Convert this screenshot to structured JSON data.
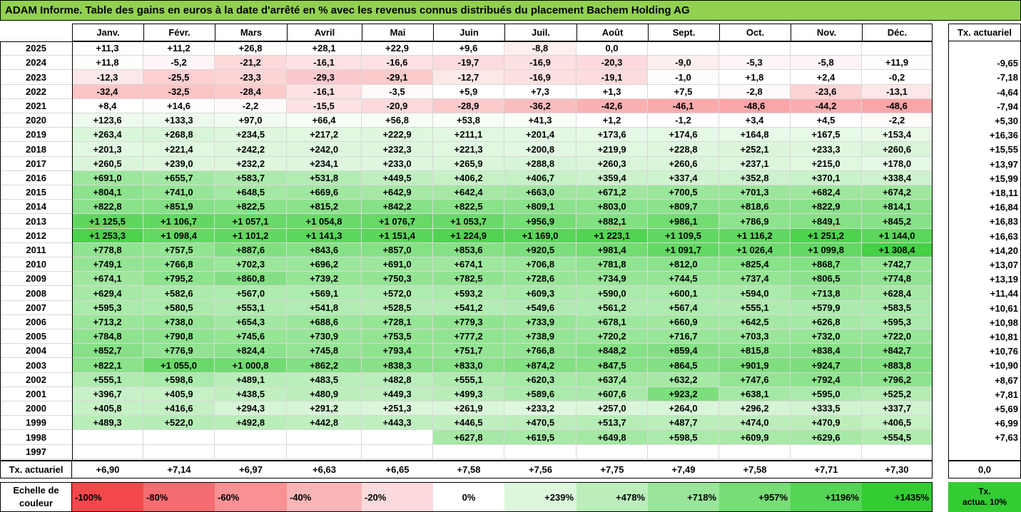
{
  "title": "ADAM Informe. Table des gains en euros à la date d'arrêté en % avec les revenus connus distribués du placement Bachem Holding AG",
  "months": [
    "Janv.",
    "Févr.",
    "Mars",
    "Avril",
    "Mai",
    "Juin",
    "Juil.",
    "Août",
    "Sept.",
    "Oct.",
    "Nov.",
    "Déc."
  ],
  "tx_header": "Tx. actuariel",
  "tx_footer_label": "Tx. actuariel",
  "colors": {
    "neg_max": "#f2484c",
    "pos_max": "#33cc33",
    "neutral": "#ffffff",
    "title_bg": "#92d050"
  },
  "chart_data": {
    "type": "heatmap",
    "title": "ADAM Informe. Table des gains en euros à la date d'arrêté en % avec les revenus connus distribués du placement Bachem Holding AG",
    "x_categories": [
      "Janv.",
      "Févr.",
      "Mars",
      "Avril",
      "Mai",
      "Juin",
      "Juil.",
      "Août",
      "Sept.",
      "Oct.",
      "Nov.",
      "Déc."
    ],
    "scale": {
      "min": -100,
      "max": 1435
    },
    "rows": [
      {
        "year": "2025",
        "values": [
          "+11,3",
          "+11,2",
          "+26,8",
          "+28,1",
          "+22,9",
          "+9,6",
          "-8,8",
          "0,0",
          "",
          "",
          "",
          ""
        ],
        "tx": ""
      },
      {
        "year": "2024",
        "values": [
          "+11,8",
          "-5,2",
          "-21,2",
          "-16,1",
          "-16,6",
          "-19,7",
          "-16,9",
          "-20,3",
          "-9,0",
          "-5,3",
          "-5,8",
          "+11,9"
        ],
        "tx": "-9,65"
      },
      {
        "year": "2023",
        "values": [
          "-12,3",
          "-25,5",
          "-23,3",
          "-29,3",
          "-29,1",
          "-12,7",
          "-16,9",
          "-19,1",
          "-1,0",
          "+1,8",
          "+2,4",
          "-0,2"
        ],
        "tx": "-7,18"
      },
      {
        "year": "2022",
        "values": [
          "-32,4",
          "-32,5",
          "-28,4",
          "-16,1",
          "-3,5",
          "+5,9",
          "+7,3",
          "+1,3",
          "+7,5",
          "-2,8",
          "-23,6",
          "-13,1"
        ],
        "tx": "-4,64"
      },
      {
        "year": "2021",
        "values": [
          "+8,4",
          "+14,6",
          "-2,2",
          "-15,5",
          "-20,9",
          "-28,9",
          "-36,2",
          "-42,6",
          "-46,1",
          "-48,6",
          "-44,2",
          "-48,6"
        ],
        "tx": "-7,94"
      },
      {
        "year": "2020",
        "values": [
          "+123,6",
          "+133,3",
          "+97,0",
          "+66,4",
          "+56,8",
          "+53,8",
          "+41,3",
          "+1,2",
          "-1,2",
          "+3,4",
          "+4,5",
          "-2,2"
        ],
        "tx": "+5,30"
      },
      {
        "year": "2019",
        "values": [
          "+263,4",
          "+268,8",
          "+234,5",
          "+217,2",
          "+222,9",
          "+211,1",
          "+201,4",
          "+173,6",
          "+174,6",
          "+164,8",
          "+167,5",
          "+153,4"
        ],
        "tx": "+16,36"
      },
      {
        "year": "2018",
        "values": [
          "+201,3",
          "+221,4",
          "+242,2",
          "+242,0",
          "+232,3",
          "+221,3",
          "+200,8",
          "+219,9",
          "+228,8",
          "+252,1",
          "+233,3",
          "+260,6"
        ],
        "tx": "+15,55"
      },
      {
        "year": "2017",
        "values": [
          "+260,5",
          "+239,0",
          "+232,2",
          "+234,1",
          "+233,0",
          "+265,9",
          "+288,8",
          "+260,3",
          "+260,6",
          "+237,1",
          "+215,0",
          "+178,0"
        ],
        "tx": "+13,97"
      },
      {
        "year": "2016",
        "values": [
          "+691,0",
          "+655,7",
          "+583,7",
          "+531,8",
          "+449,5",
          "+406,2",
          "+406,7",
          "+359,4",
          "+337,4",
          "+352,8",
          "+370,1",
          "+338,4"
        ],
        "tx": "+15,99"
      },
      {
        "year": "2015",
        "values": [
          "+804,1",
          "+741,0",
          "+648,5",
          "+669,6",
          "+642,9",
          "+642,4",
          "+663,0",
          "+671,2",
          "+700,5",
          "+701,3",
          "+682,4",
          "+674,2"
        ],
        "tx": "+18,11"
      },
      {
        "year": "2014",
        "values": [
          "+822,8",
          "+851,9",
          "+822,5",
          "+815,2",
          "+842,2",
          "+822,5",
          "+809,1",
          "+803,0",
          "+809,7",
          "+818,6",
          "+822,9",
          "+814,1"
        ],
        "tx": "+16,84"
      },
      {
        "year": "2013",
        "values": [
          "+1 125,5",
          "+1 106,7",
          "+1 057,1",
          "+1 054,8",
          "+1 076,7",
          "+1 053,7",
          "+956,9",
          "+882,1",
          "+986,1",
          "+786,9",
          "+849,1",
          "+845,2"
        ],
        "tx": "+16,83"
      },
      {
        "year": "2012",
        "values": [
          "+1 253,3",
          "+1 098,4",
          "+1 101,2",
          "+1 141,3",
          "+1 151,4",
          "+1 224,9",
          "+1 169,0",
          "+1 223,1",
          "+1 109,5",
          "+1 116,2",
          "+1 251,2",
          "+1 144,0"
        ],
        "tx": "+16,63"
      },
      {
        "year": "2011",
        "values": [
          "+778,8",
          "+757,5",
          "+887,6",
          "+843,6",
          "+857,0",
          "+853,6",
          "+920,5",
          "+981,4",
          "+1 091,7",
          "+1 026,4",
          "+1 099,8",
          "+1 308,4"
        ],
        "tx": "+14,20"
      },
      {
        "year": "2010",
        "values": [
          "+749,1",
          "+766,8",
          "+702,3",
          "+696,2",
          "+691,0",
          "+674,1",
          "+706,8",
          "+781,8",
          "+812,0",
          "+825,4",
          "+868,7",
          "+742,7"
        ],
        "tx": "+13,07"
      },
      {
        "year": "2009",
        "values": [
          "+674,1",
          "+795,2",
          "+860,8",
          "+739,2",
          "+750,3",
          "+782,5",
          "+728,6",
          "+734,9",
          "+744,5",
          "+737,4",
          "+806,5",
          "+774,8"
        ],
        "tx": "+13,19"
      },
      {
        "year": "2008",
        "values": [
          "+629,4",
          "+582,6",
          "+567,0",
          "+569,1",
          "+572,0",
          "+593,2",
          "+609,3",
          "+590,0",
          "+600,1",
          "+594,0",
          "+713,8",
          "+628,4"
        ],
        "tx": "+11,44"
      },
      {
        "year": "2007",
        "values": [
          "+595,3",
          "+580,5",
          "+553,1",
          "+541,8",
          "+528,5",
          "+541,2",
          "+549,6",
          "+561,2",
          "+567,4",
          "+555,1",
          "+579,9",
          "+583,5"
        ],
        "tx": "+10,61"
      },
      {
        "year": "2006",
        "values": [
          "+713,2",
          "+738,0",
          "+654,3",
          "+688,6",
          "+728,1",
          "+779,3",
          "+733,9",
          "+678,1",
          "+660,9",
          "+642,5",
          "+626,8",
          "+595,3"
        ],
        "tx": "+10,98"
      },
      {
        "year": "2005",
        "values": [
          "+784,8",
          "+790,8",
          "+745,6",
          "+730,9",
          "+753,5",
          "+777,2",
          "+738,9",
          "+720,2",
          "+716,7",
          "+703,3",
          "+732,0",
          "+722,0"
        ],
        "tx": "+10,81"
      },
      {
        "year": "2004",
        "values": [
          "+852,7",
          "+776,9",
          "+824,4",
          "+745,8",
          "+793,4",
          "+751,7",
          "+766,8",
          "+848,2",
          "+859,4",
          "+815,8",
          "+838,4",
          "+842,7"
        ],
        "tx": "+10,76"
      },
      {
        "year": "2003",
        "values": [
          "+822,1",
          "+1 055,0",
          "+1 000,8",
          "+862,2",
          "+838,3",
          "+833,0",
          "+874,2",
          "+847,5",
          "+864,5",
          "+901,9",
          "+924,7",
          "+883,8"
        ],
        "tx": "+10,90"
      },
      {
        "year": "2002",
        "values": [
          "+555,1",
          "+598,6",
          "+489,1",
          "+483,5",
          "+482,8",
          "+555,1",
          "+620,3",
          "+637,4",
          "+632,2",
          "+747,6",
          "+792,4",
          "+796,2"
        ],
        "tx": "+8,67"
      },
      {
        "year": "2001",
        "values": [
          "+396,7",
          "+405,9",
          "+438,5",
          "+480,9",
          "+449,3",
          "+499,3",
          "+589,6",
          "+607,6",
          "+923,2",
          "+638,1",
          "+595,0",
          "+525,2"
        ],
        "tx": "+7,81"
      },
      {
        "year": "2000",
        "values": [
          "+405,8",
          "+416,6",
          "+294,3",
          "+291,2",
          "+251,3",
          "+261,9",
          "+233,2",
          "+257,0",
          "+264,0",
          "+296,2",
          "+333,5",
          "+337,7"
        ],
        "tx": "+5,69"
      },
      {
        "year": "1999",
        "values": [
          "+489,3",
          "+522,0",
          "+492,8",
          "+442,8",
          "+443,3",
          "+446,5",
          "+470,5",
          "+513,7",
          "+487,7",
          "+474,0",
          "+470,9",
          "+406,5"
        ],
        "tx": "+6,99"
      },
      {
        "year": "1998",
        "values": [
          "",
          "",
          "",
          "",
          "",
          "+627,8",
          "+619,5",
          "+649,8",
          "+598,5",
          "+609,9",
          "+629,6",
          "+554,5"
        ],
        "tx": "+7,63"
      },
      {
        "year": "1997",
        "values": [
          "",
          "",
          "",
          "",
          "",
          "",
          "",
          "",
          "",
          "",
          "",
          ""
        ],
        "tx": ""
      }
    ],
    "footer": {
      "values": [
        "+6,90",
        "+7,14",
        "+6,97",
        "+6,63",
        "+6,65",
        "+7,58",
        "+7,56",
        "+7,75",
        "+7,49",
        "+7,58",
        "+7,71",
        "+7,30"
      ],
      "tx": "0,0"
    }
  },
  "legend": {
    "label_line1": "Echelle de",
    "label_line2": "couleur",
    "items": [
      {
        "text": "-100%",
        "value": -100
      },
      {
        "text": "-80%",
        "value": -80
      },
      {
        "text": "-60%",
        "value": -60
      },
      {
        "text": "-40%",
        "value": -40
      },
      {
        "text": "-20%",
        "value": -20
      },
      {
        "text": "0%",
        "value": 0
      },
      {
        "text": "+239%",
        "value": 239
      },
      {
        "text": "+478%",
        "value": 478
      },
      {
        "text": "+718%",
        "value": 718
      },
      {
        "text": "+957%",
        "value": 957
      },
      {
        "text": "+1196%",
        "value": 1196
      },
      {
        "text": "+1435%",
        "value": 1435
      }
    ],
    "tx_line1": "Tx.",
    "tx_line2": "actua. 10%",
    "tx_value": 10
  }
}
